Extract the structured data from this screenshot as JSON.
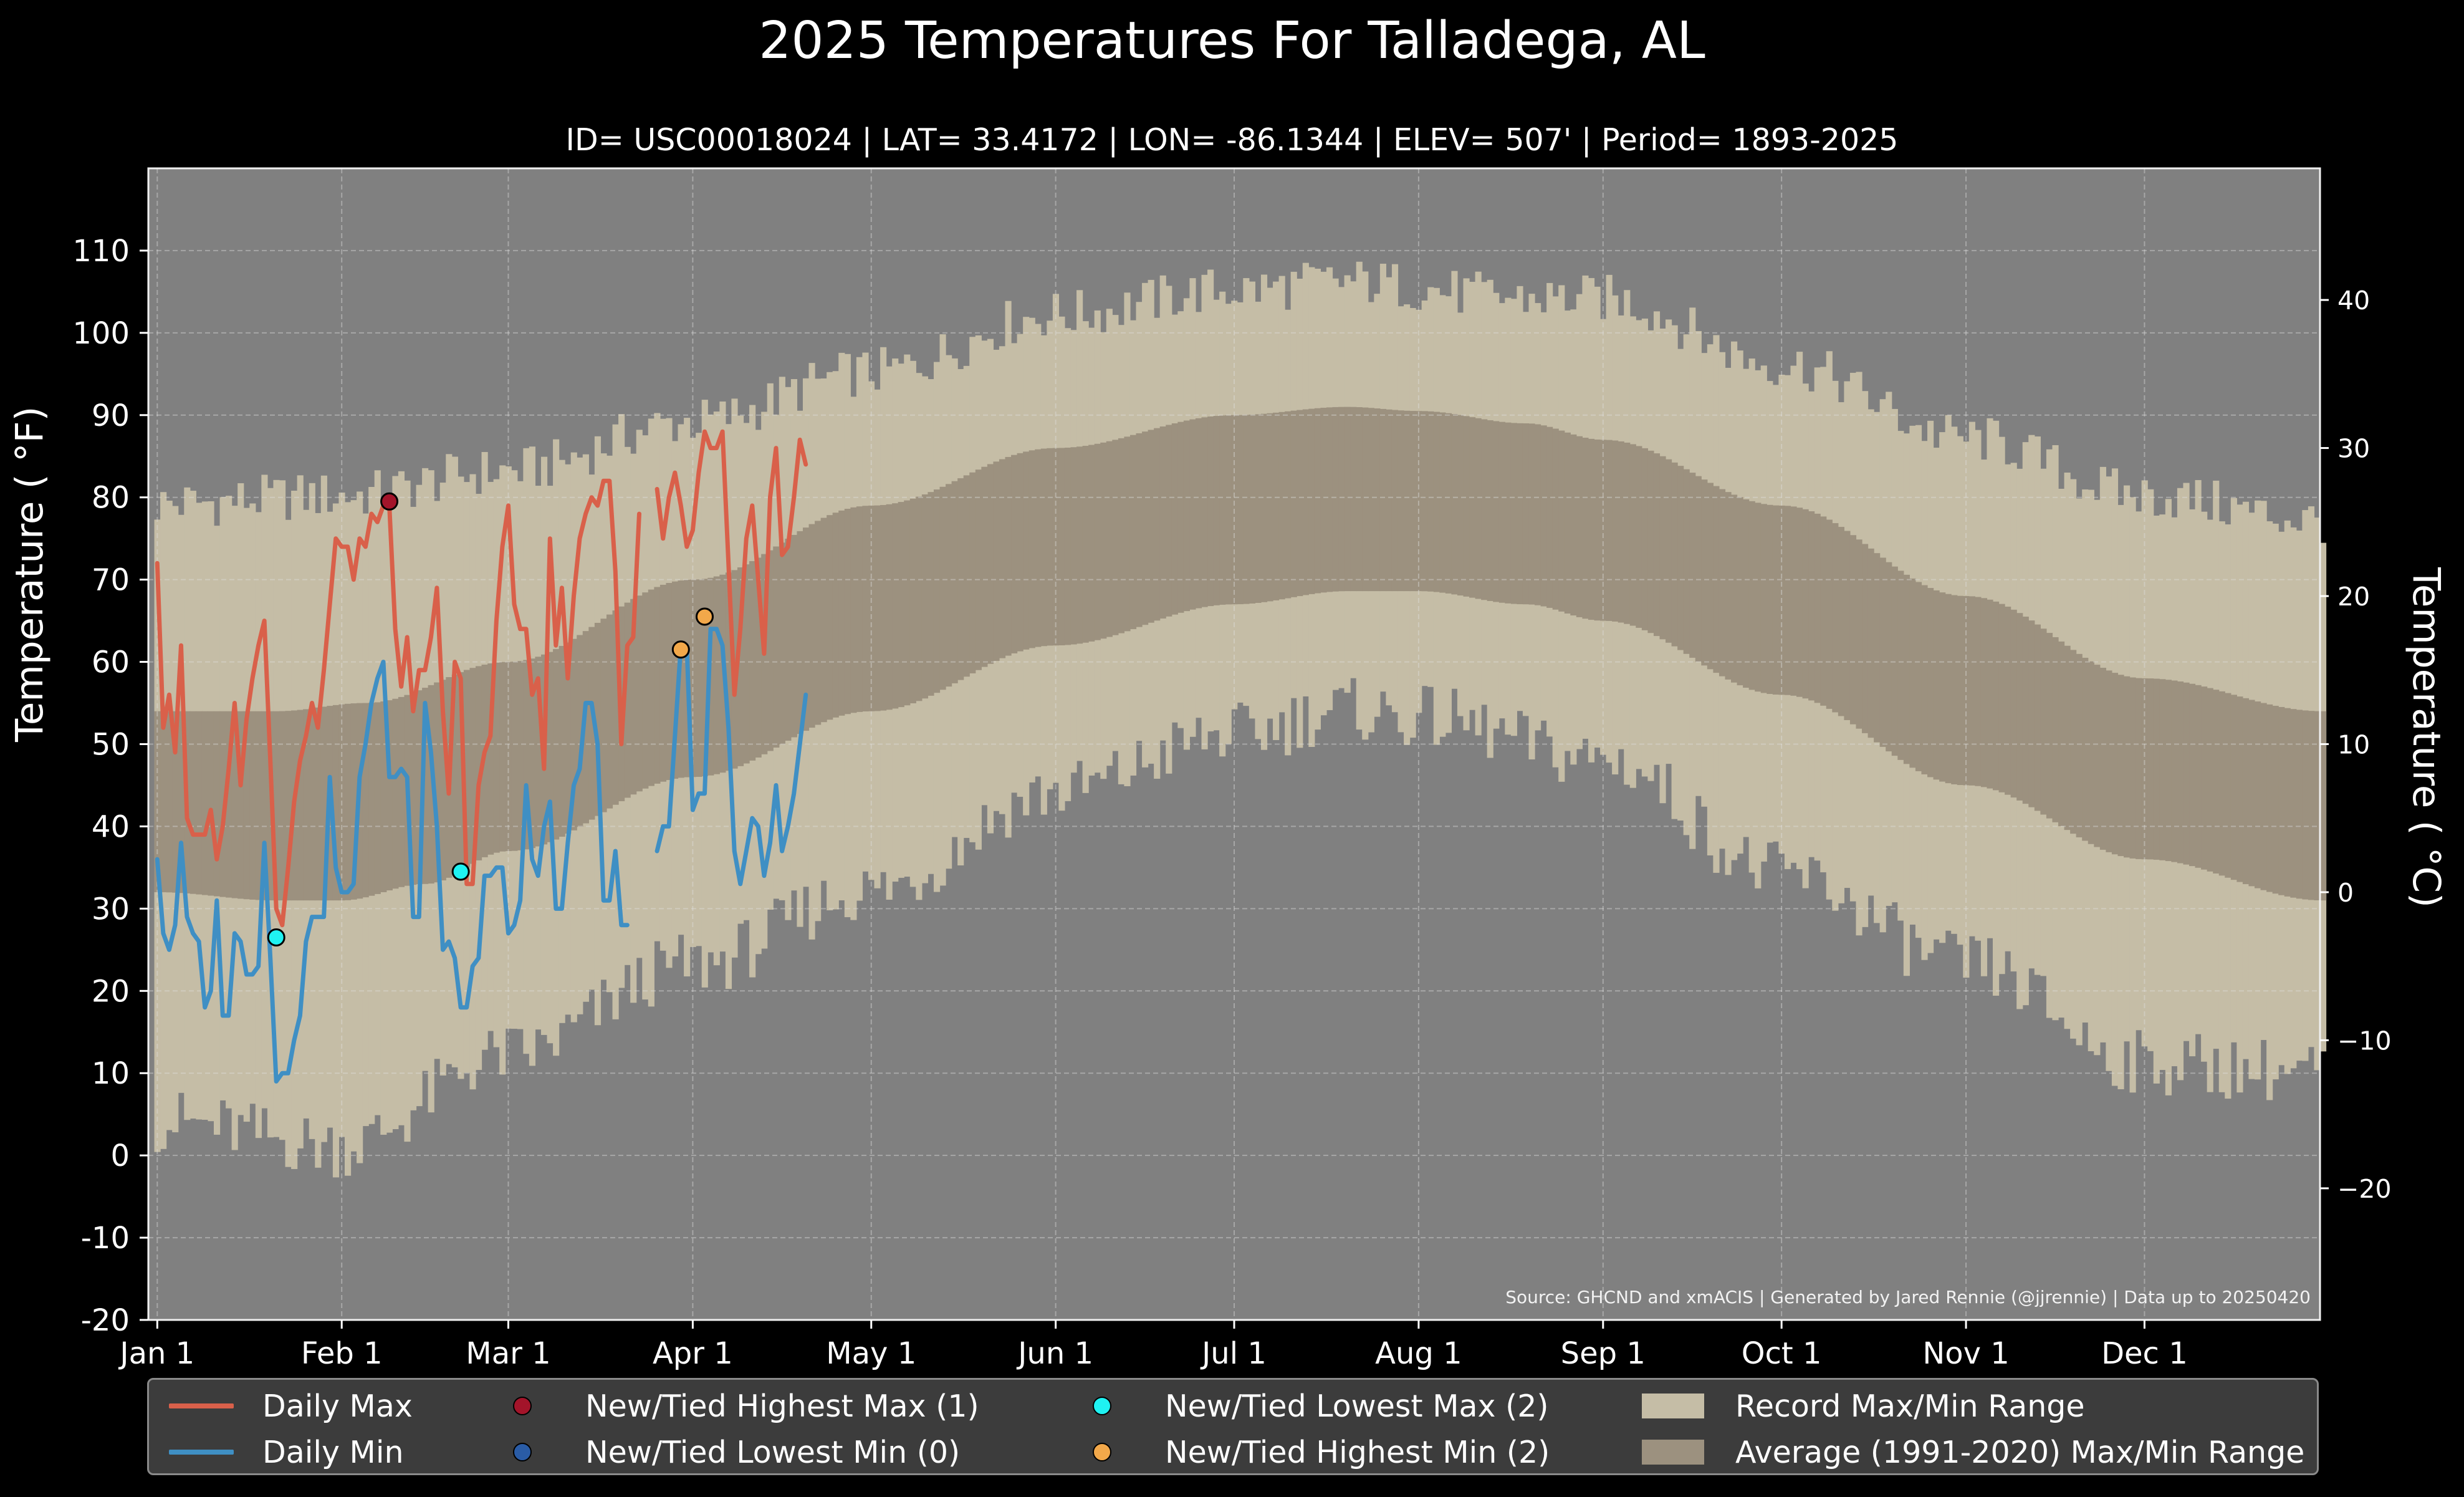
{
  "title": "2025 Temperatures For Talladega, AL",
  "subtitle": "ID= USC00018024 | LAT= 33.4172 | LON= -86.1344 | ELEV= 507' | Period= 1893-2025",
  "source": "Source: GHCND and xmACIS | Generated by Jared Rennie (@jjrennie) | Data up to 20250420",
  "colors": {
    "background": "#000000",
    "plot_background": "#808080",
    "record_range": "#c5bda6",
    "average_range": "#9c917f",
    "daily_max": "#d9604a",
    "daily_min": "#3f8fc4",
    "new_high_max": "#a3142a",
    "new_low_min": "#2a5ca6",
    "new_low_max": "#1ff2f2",
    "new_high_min": "#f2a84a"
  },
  "chart_data": {
    "type": "line",
    "title": "2025 Temperatures For Talladega, AL",
    "xlabel": "",
    "ylabel": "Temperature ( °F)",
    "ylabel_right": "Temperature ( °C)",
    "ylim": [
      -20,
      120
    ],
    "yticks": [
      -20,
      -10,
      0,
      10,
      20,
      30,
      40,
      50,
      60,
      70,
      80,
      90,
      100,
      110
    ],
    "ylim_c": [
      -28.89,
      48.89
    ],
    "yticks_c": [
      -20,
      -10,
      0,
      10,
      20,
      30,
      40
    ],
    "xlim": [
      -1.5,
      363.5
    ],
    "xticks": [
      {
        "day": 0,
        "label": "Jan 1"
      },
      {
        "day": 31,
        "label": "Feb 1"
      },
      {
        "day": 59,
        "label": "Mar 1"
      },
      {
        "day": 90,
        "label": "Apr 1"
      },
      {
        "day": 120,
        "label": "May 1"
      },
      {
        "day": 151,
        "label": "Jun 1"
      },
      {
        "day": 181,
        "label": "Jul 1"
      },
      {
        "day": 212,
        "label": "Aug 1"
      },
      {
        "day": 243,
        "label": "Sep 1"
      },
      {
        "day": 273,
        "label": "Oct 1"
      },
      {
        "day": 304,
        "label": "Nov 1"
      },
      {
        "day": 334,
        "label": "Dec 1"
      }
    ],
    "grid": true,
    "legend_position": "bottom",
    "record_max_anchors": [
      [
        0,
        78
      ],
      [
        31,
        79
      ],
      [
        59,
        82
      ],
      [
        90,
        88
      ],
      [
        120,
        94
      ],
      [
        151,
        101
      ],
      [
        181,
        104
      ],
      [
        200,
        105
      ],
      [
        230,
        103
      ],
      [
        243,
        103
      ],
      [
        273,
        95
      ],
      [
        304,
        86
      ],
      [
        334,
        79
      ],
      [
        364,
        76
      ]
    ],
    "record_min_anchors": [
      [
        0,
        5
      ],
      [
        31,
        2
      ],
      [
        59,
        13
      ],
      [
        90,
        24
      ],
      [
        120,
        33
      ],
      [
        151,
        45
      ],
      [
        181,
        52
      ],
      [
        200,
        55
      ],
      [
        212,
        54
      ],
      [
        243,
        49
      ],
      [
        273,
        35
      ],
      [
        304,
        24
      ],
      [
        334,
        12
      ],
      [
        364,
        11
      ]
    ],
    "avg_max_anchors": [
      [
        0,
        54
      ],
      [
        20,
        54
      ],
      [
        35,
        55
      ],
      [
        59,
        60
      ],
      [
        90,
        70
      ],
      [
        120,
        79
      ],
      [
        151,
        86
      ],
      [
        181,
        90
      ],
      [
        200,
        91
      ],
      [
        212,
        90.5
      ],
      [
        230,
        89
      ],
      [
        243,
        87
      ],
      [
        273,
        79
      ],
      [
        304,
        68
      ],
      [
        334,
        58
      ],
      [
        364,
        54
      ]
    ],
    "avg_min_anchors": [
      [
        0,
        32
      ],
      [
        20,
        31
      ],
      [
        31,
        31
      ],
      [
        45,
        33
      ],
      [
        59,
        37
      ],
      [
        90,
        46
      ],
      [
        120,
        54
      ],
      [
        151,
        62
      ],
      [
        181,
        67
      ],
      [
        200,
        68.6
      ],
      [
        212,
        68.6
      ],
      [
        230,
        67
      ],
      [
        243,
        65
      ],
      [
        273,
        56
      ],
      [
        304,
        45
      ],
      [
        334,
        36
      ],
      [
        364,
        31
      ]
    ],
    "series": [
      {
        "name": "Daily Max",
        "start_day": 0,
        "values": [
          72,
          52,
          56,
          49,
          62,
          41,
          39,
          39,
          39,
          42,
          36,
          40,
          47,
          55,
          45,
          53,
          58,
          62,
          65,
          48,
          30,
          28,
          35,
          43,
          48,
          51,
          55,
          52,
          59,
          67,
          75,
          74,
          74,
          70,
          75,
          74,
          78,
          77,
          79,
          79,
          64,
          57,
          63,
          54,
          59,
          59,
          63,
          69,
          54,
          44,
          60,
          58,
          33,
          33,
          45,
          49,
          51,
          65,
          74,
          79,
          67,
          64,
          64,
          56,
          58,
          47,
          75,
          62,
          69,
          58,
          68,
          75,
          78,
          80,
          79,
          82,
          82,
          71,
          50,
          62,
          63,
          78,
          null,
          null,
          81,
          75,
          80,
          83,
          79,
          74,
          76,
          83,
          88,
          86,
          86,
          88,
          72,
          56,
          64,
          75,
          79,
          70,
          61,
          80,
          86,
          73,
          74,
          80,
          87,
          84
        ]
      },
      {
        "name": "Daily Min",
        "start_day": 0,
        "values": [
          36,
          27,
          25,
          28,
          38,
          29,
          27,
          26,
          18,
          20,
          31,
          17,
          17,
          27,
          26,
          22,
          22,
          23,
          38,
          24,
          9,
          10,
          10,
          14,
          17,
          26,
          29,
          29,
          29,
          46,
          35,
          32,
          32,
          33,
          46,
          50,
          55,
          58,
          60,
          46,
          46,
          47,
          46,
          29,
          29,
          55,
          49,
          40,
          25,
          26,
          24,
          18,
          18,
          23,
          24,
          34,
          34,
          35,
          35,
          27,
          28,
          31,
          45,
          36,
          34,
          40,
          43,
          30,
          30,
          38,
          45,
          47,
          55,
          55,
          50,
          31,
          31,
          37,
          28,
          28,
          null,
          null,
          null,
          null,
          37,
          40,
          40,
          51,
          62,
          62,
          42,
          44,
          44,
          64,
          64,
          62,
          52,
          37,
          33,
          37,
          41,
          40,
          34,
          38,
          45,
          37,
          40,
          44,
          50,
          56
        ]
      }
    ],
    "markers": [
      {
        "name": "New/Tied Highest Max (1)",
        "color_key": "new_high_max",
        "points": [
          [
            39,
            79.5
          ]
        ]
      },
      {
        "name": "New/Tied Lowest Min (0)",
        "color_key": "new_low_min",
        "points": []
      },
      {
        "name": "New/Tied Lowest Max (2)",
        "color_key": "new_low_max",
        "points": [
          [
            20,
            26.5
          ],
          [
            51,
            34.5
          ]
        ]
      },
      {
        "name": "New/Tied Highest Min (2)",
        "color_key": "new_high_min",
        "points": [
          [
            88,
            61.5
          ],
          [
            92,
            65.5
          ]
        ]
      }
    ]
  },
  "legend": {
    "daily_max": "Daily Max",
    "daily_min": "Daily Min",
    "new_high_max": "New/Tied Highest Max (1)",
    "new_low_min": "New/Tied Lowest Min (0)",
    "new_low_max": "New/Tied Lowest Max (2)",
    "new_high_min": "New/Tied Highest Min (2)",
    "record_range": "Record Max/Min Range",
    "average_range": "Average (1991-2020) Max/Min Range"
  }
}
